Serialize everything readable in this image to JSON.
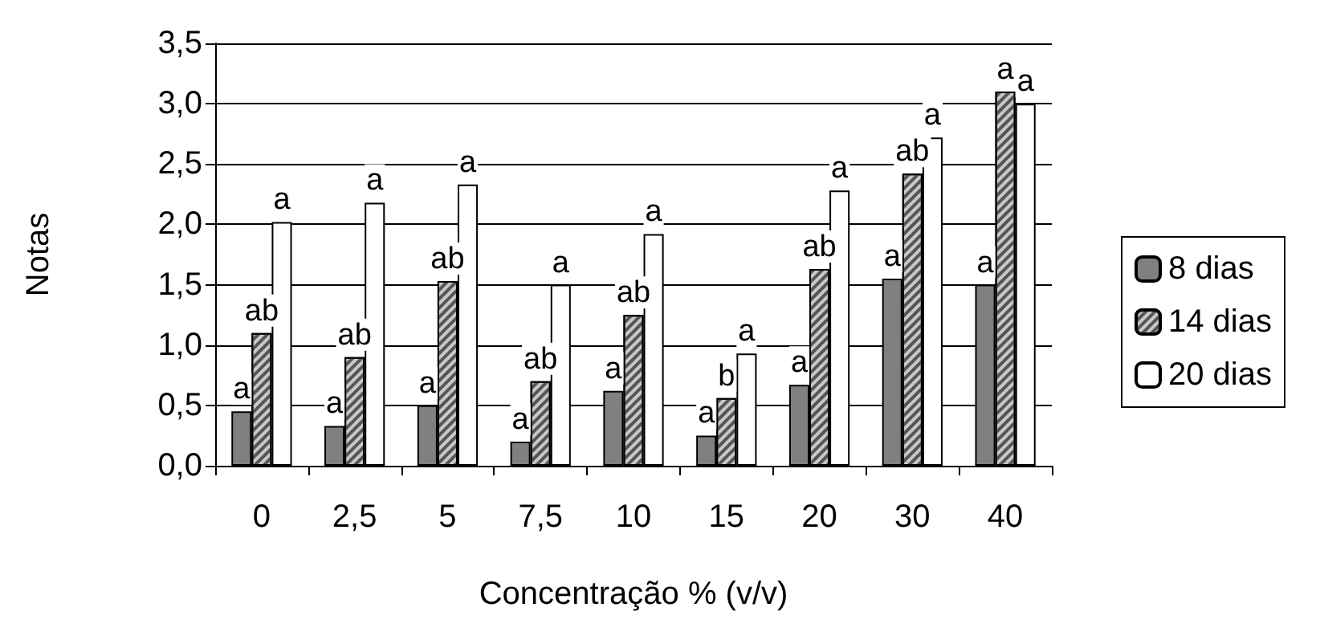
{
  "chart_data": {
    "type": "bar",
    "xlabel": "Concentração % (v/v)",
    "ylabel": "Notas",
    "categories": [
      "0",
      "2,5",
      "5",
      "7,5",
      "10",
      "15",
      "20",
      "30",
      "40"
    ],
    "series": [
      {
        "name": "8 dias",
        "color": "#808080",
        "values": [
          0.45,
          0.33,
          0.5,
          0.2,
          0.62,
          0.25,
          0.67,
          1.55,
          1.5
        ],
        "value_labels": [
          "a",
          "a",
          "a",
          "a",
          "a",
          "a",
          "a",
          "a",
          "a"
        ]
      },
      {
        "name": "14 dias",
        "color": "#c8c8c8",
        "values": [
          1.1,
          0.9,
          1.53,
          0.7,
          1.25,
          0.56,
          1.63,
          2.42,
          3.1
        ],
        "value_labels": [
          "ab",
          "ab",
          "ab",
          "ab",
          "ab",
          "b",
          "ab",
          "ab",
          "a"
        ]
      },
      {
        "name": "20 dias",
        "color": "#ffffff",
        "values": [
          2.02,
          2.18,
          2.33,
          1.5,
          1.92,
          0.93,
          2.28,
          2.72,
          3.0
        ],
        "value_labels": [
          "a",
          "a",
          "a",
          "a",
          "a",
          "a",
          "a",
          "a",
          "a"
        ]
      }
    ],
    "ylim": [
      0,
      3.5
    ],
    "yticks": [
      {
        "value": 0,
        "label": "0,0"
      },
      {
        "value": 0.5,
        "label": "0,5"
      },
      {
        "value": 1,
        "label": "1,0"
      },
      {
        "value": 1.5,
        "label": "1,5"
      },
      {
        "value": 2,
        "label": "2,0"
      },
      {
        "value": 2.5,
        "label": "2,5"
      },
      {
        "value": 3,
        "label": "3,0"
      },
      {
        "value": 3.5,
        "label": "3,5"
      }
    ],
    "grid": "y",
    "legend": "right"
  }
}
